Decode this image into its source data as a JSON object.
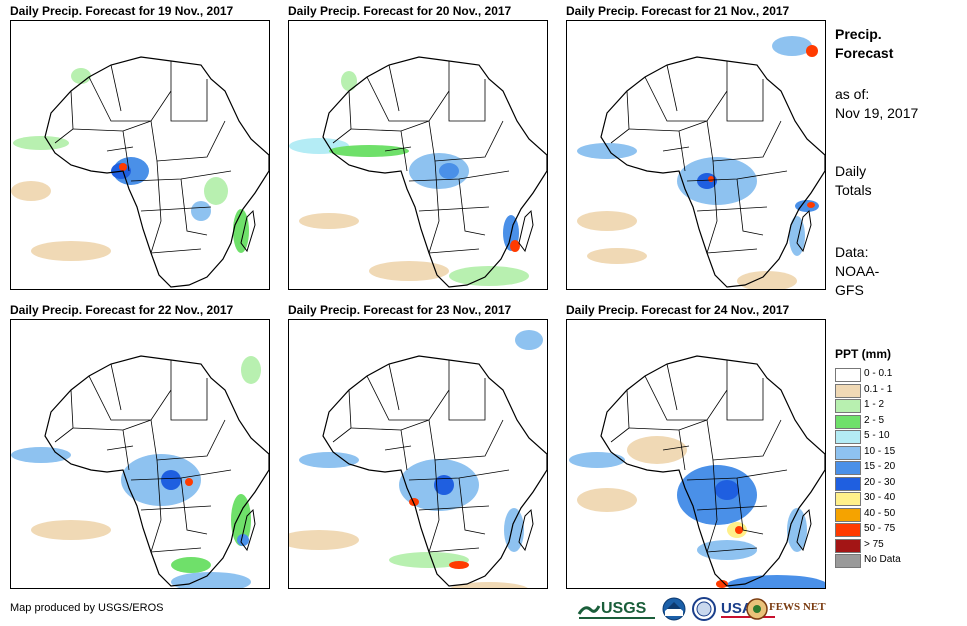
{
  "panels": [
    {
      "title": "Daily Precip. Forecast for 19 Nov., 2017"
    },
    {
      "title": "Daily Precip. Forecast for 20 Nov., 2017"
    },
    {
      "title": "Daily Precip. Forecast for 21 Nov., 2017"
    },
    {
      "title": "Daily Precip. Forecast for 22 Nov., 2017"
    },
    {
      "title": "Daily Precip. Forecast for 23 Nov., 2017"
    },
    {
      "title": "Daily Precip. Forecast for 24 Nov., 2017"
    }
  ],
  "sidebar": {
    "title_line1": "Precip.",
    "title_line2": "Forecast",
    "asof_label": "as of:",
    "asof_date": "Nov 19, 2017",
    "totals_line1": "Daily",
    "totals_line2": "Totals",
    "data_label": "Data:",
    "data_line1": "NOAA-",
    "data_line2": "GFS"
  },
  "legend": {
    "title": "PPT (mm)",
    "items": [
      {
        "label": "0 - 0.1",
        "color": "#ffffff"
      },
      {
        "label": "0.1 - 1",
        "color": "#f0d9b5"
      },
      {
        "label": "1 - 2",
        "color": "#b8f0b0"
      },
      {
        "label": "2 - 5",
        "color": "#6fe06a"
      },
      {
        "label": "5 - 10",
        "color": "#b4ecf5"
      },
      {
        "label": "10 - 15",
        "color": "#8ec2f0"
      },
      {
        "label": "15 - 20",
        "color": "#4a90e8"
      },
      {
        "label": "20 - 30",
        "color": "#1f5fe0"
      },
      {
        "label": "30 - 40",
        "color": "#fff08a"
      },
      {
        "label": "40 - 50",
        "color": "#f5a300"
      },
      {
        "label": "50 - 75",
        "color": "#ff3b00"
      },
      {
        "label": "> 75",
        "color": "#a31515"
      },
      {
        "label": "No Data",
        "color": "#9a9a9a"
      }
    ]
  },
  "footer": {
    "credit": "Map produced by USGS/EROS",
    "logo_usgs": "USGS",
    "logo_usaid": "USAID",
    "logo_fews": "FEWS NET"
  }
}
